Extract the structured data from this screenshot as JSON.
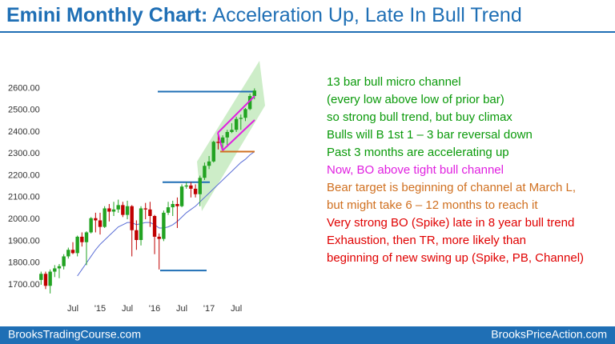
{
  "chart_data": {
    "type": "candlestick",
    "title": "Emini Monthly Chart:",
    "subtitle": "Acceleration Up, Late In Bull Trend",
    "categories": [
      null,
      null,
      null,
      null,
      null,
      null,
      null,
      "Jul",
      null,
      null,
      null,
      null,
      null,
      "'15",
      null,
      null,
      null,
      null,
      null,
      "Jul",
      null,
      null,
      null,
      null,
      null,
      "'16",
      null,
      null,
      null,
      null,
      null,
      "Jul",
      null,
      null,
      null,
      null,
      null,
      "'17",
      null,
      null,
      null,
      null,
      null,
      "Jul",
      null,
      null,
      null,
      null
    ],
    "open": [
      1722,
      1750,
      1695,
      1760,
      1775,
      1785,
      1830,
      1860,
      1845,
      1920,
      1895,
      1940,
      2005,
      1995,
      1965,
      2050,
      2035,
      2045,
      2065,
      2020,
      2060,
      1950,
      1905,
      2050,
      2045,
      2015,
      1920,
      1910,
      2030,
      2055,
      2070,
      2060,
      2150,
      2155,
      2140,
      2115,
      2190,
      2245,
      2265,
      2355,
      2350,
      2375,
      2400,
      2410,
      2460,
      2465,
      2505,
      2565
    ],
    "high": [
      1760,
      1760,
      1770,
      1790,
      1795,
      1840,
      1870,
      1895,
      1925,
      1940,
      1945,
      2010,
      2030,
      2030,
      2060,
      2070,
      2080,
      2090,
      2080,
      2085,
      2065,
      1995,
      2060,
      2075,
      2080,
      2020,
      1935,
      2040,
      2080,
      2085,
      2100,
      2160,
      2170,
      2170,
      2160,
      2200,
      2260,
      2290,
      2360,
      2390,
      2385,
      2410,
      2440,
      2470,
      2480,
      2510,
      2575,
      2600
    ],
    "low": [
      1700,
      1680,
      1660,
      1735,
      1730,
      1770,
      1820,
      1840,
      1830,
      1875,
      1790,
      1935,
      1940,
      1930,
      1960,
      1990,
      2015,
      2030,
      2010,
      2000,
      1830,
      1860,
      1880,
      2000,
      1965,
      1840,
      1770,
      1900,
      2020,
      2015,
      1960,
      2055,
      2140,
      2100,
      2100,
      2060,
      2180,
      2230,
      2260,
      2320,
      2315,
      2340,
      2395,
      2400,
      2410,
      2450,
      2500,
      2550
    ],
    "close": [
      1750,
      1695,
      1760,
      1775,
      1785,
      1830,
      1860,
      1845,
      1920,
      1895,
      1940,
      2005,
      1995,
      1965,
      2050,
      2035,
      2045,
      2065,
      2020,
      2060,
      1950,
      1905,
      2050,
      2045,
      2015,
      1920,
      1910,
      2030,
      2055,
      2070,
      2060,
      2150,
      2155,
      2140,
      2115,
      2190,
      2245,
      2265,
      2355,
      2350,
      2375,
      2400,
      2410,
      2460,
      2465,
      2505,
      2565,
      2590
    ],
    "up_color": "#22a322",
    "down_color": "#c00000",
    "moving_average": {
      "color": "#5b6fd6",
      "values": [
        null,
        null,
        null,
        null,
        null,
        null,
        null,
        null,
        1740,
        1770,
        1800,
        1830,
        1860,
        1885,
        1905,
        1925,
        1945,
        1965,
        1975,
        1985,
        1985,
        1975,
        1980,
        1985,
        1985,
        1975,
        1960,
        1960,
        1965,
        1975,
        1990,
        2010,
        2030,
        2045,
        2060,
        2080,
        2100,
        2120,
        2140,
        2160,
        2180,
        2200,
        2220,
        2240,
        2260,
        2275,
        2295,
        2310
      ]
    },
    "levels": [
      {
        "value": 2585,
        "color": "#1f6fb5"
      },
      {
        "value": 2170,
        "color": "#1f6fb5"
      },
      {
        "value": 1765,
        "color": "#1f6fb5"
      },
      {
        "value": 2310,
        "color": "#d07020"
      }
    ],
    "ylim": [
      1630,
      2730
    ],
    "yticks": [
      {
        "value": 1700,
        "label": "1700.00"
      },
      {
        "value": 1800,
        "label": "1800.00"
      },
      {
        "value": 1900,
        "label": "1900.00"
      },
      {
        "value": 2000,
        "label": "2000.00"
      },
      {
        "value": 2100,
        "label": "2100.00"
      },
      {
        "value": 2200,
        "label": "2200.00"
      },
      {
        "value": 2300,
        "label": "2300.00"
      },
      {
        "value": 2400,
        "label": "2400.00"
      },
      {
        "value": 2500,
        "label": "2500.00"
      },
      {
        "value": 2600,
        "label": "2600.00"
      }
    ],
    "annotations": [
      {
        "text": "13 bar bull micro channel",
        "color": "#0a9a0a"
      },
      {
        "text": "(every low above low of prior bar)",
        "color": "#0a9a0a"
      },
      {
        "text": "so strong bull trend, but buy climax",
        "color": "#0a9a0a"
      },
      {
        "text": "Bulls will B 1st 1 – 3 bar reversal down",
        "color": "#0a9a0a"
      },
      {
        "text": "Past 3 months are accelerating up",
        "color": "#0a9a0a"
      },
      {
        "text": "Now, BO above tight bull channel",
        "color": "#e020e0"
      },
      {
        "text": "Bear target is beginning of channel at March L,",
        "color": "#d07020"
      },
      {
        "text": "but might take 6 – 12 months to reach it",
        "color": "#d07020"
      },
      {
        "text": "Very strong BO (Spike) late in 8 year bull trend",
        "color": "#e00000"
      },
      {
        "text": "Exhaustion, then TR, more likely than",
        "color": "#e00000"
      },
      {
        "text": "beginning of new swing up (Spike, PB, Channel)",
        "color": "#e00000"
      }
    ]
  },
  "footer": {
    "left": "BrooksTradingCourse.com",
    "right": "BrooksPriceAction.com"
  }
}
